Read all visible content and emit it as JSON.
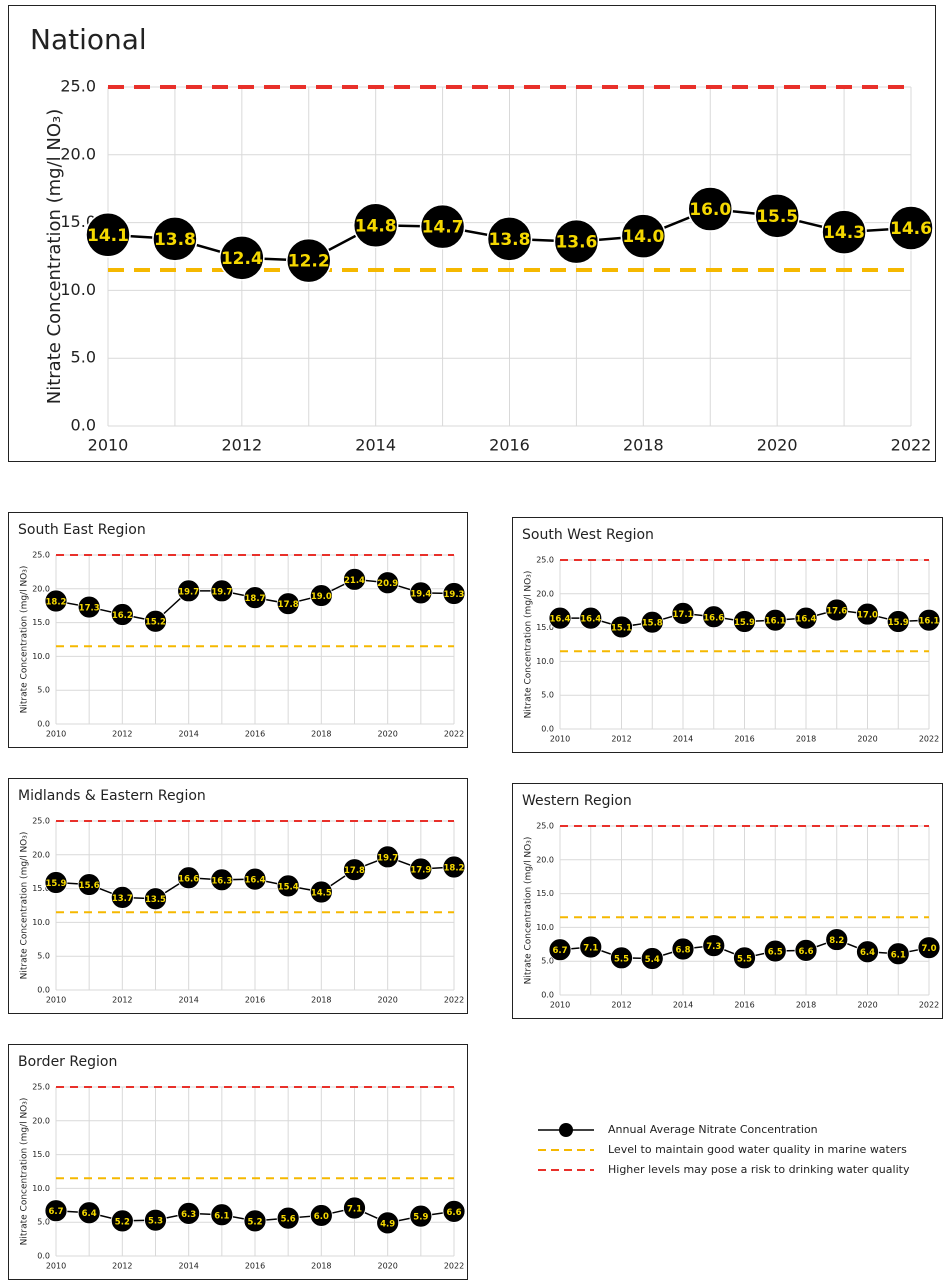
{
  "chart_data": [
    {
      "type": "line",
      "title": "National",
      "ylabel": "Nitrate Concentration (mg/l NO₃)",
      "x": [
        2010,
        2011,
        2012,
        2013,
        2014,
        2015,
        2016,
        2017,
        2018,
        2019,
        2020,
        2021,
        2022
      ],
      "series": [
        {
          "name": "Annual Average Nitrate Concentration",
          "color": "#000000",
          "values": [
            14.1,
            13.8,
            12.4,
            12.2,
            14.8,
            14.7,
            13.8,
            13.6,
            14.0,
            16.0,
            15.5,
            14.3,
            14.6
          ],
          "value_labels": [
            "14.1",
            "13.8",
            "12.4",
            "12.2",
            "14.8",
            "14.7",
            "13.8",
            "13.6",
            "14.0",
            "16.0",
            "15.5",
            "14.3",
            "14.6"
          ]
        }
      ],
      "reference_lines": [
        {
          "name": "Level to maintain good water quality in marine waters",
          "value": 11.5,
          "color": "#f5b800"
        },
        {
          "name": "Higher levels may pose a risk to drinking water quality",
          "value": 25,
          "color": "#e8302a"
        }
      ],
      "xlim": [
        2010,
        2022
      ],
      "xticks": [
        2010,
        2012,
        2014,
        2016,
        2018,
        2020,
        2022
      ],
      "ylim": [
        0,
        25
      ],
      "yticks": [
        {
          "value": 0,
          "label": "0.0"
        },
        {
          "value": 5,
          "label": "5.0"
        },
        {
          "value": 10,
          "label": "10.0"
        },
        {
          "value": 15,
          "label": "15.0"
        },
        {
          "value": 20,
          "label": "20.0"
        },
        {
          "value": 25,
          "label": "25.0"
        }
      ],
      "grid": true,
      "label_color": "#f5d800"
    },
    {
      "type": "line",
      "title": "South East Region",
      "ylabel": "Nitrate Concentration (mg/l NO₃)",
      "x": [
        2010,
        2011,
        2012,
        2013,
        2014,
        2015,
        2016,
        2017,
        2018,
        2019,
        2020,
        2021,
        2022
      ],
      "values": [
        18.2,
        17.3,
        16.2,
        15.2,
        19.7,
        19.7,
        18.7,
        17.8,
        19.0,
        21.4,
        20.9,
        19.4,
        19.3
      ],
      "color": "#000000",
      "value_labels": [
        "18.2",
        "17.3",
        "16.2",
        "15.2",
        "19.7",
        "19.7",
        "18.7",
        "17.8",
        "19.0",
        "21.4",
        "20.9",
        "19.4",
        "19.3"
      ],
      "reference_lines": [
        {
          "value": 11.5,
          "color": "#f5b800"
        },
        {
          "value": 25,
          "color": "#e8302a"
        }
      ],
      "xlim": [
        2010,
        2022
      ],
      "xticks": [
        2010,
        2012,
        2014,
        2016,
        2018,
        2020,
        2022
      ],
      "ylim": [
        0,
        25
      ],
      "yticks": [
        {
          "value": 0,
          "label": "0.0"
        },
        {
          "value": 5,
          "label": "5.0"
        },
        {
          "value": 10,
          "label": "10.0"
        },
        {
          "value": 15,
          "label": "15.0"
        },
        {
          "value": 20,
          "label": "20.0"
        },
        {
          "value": 25,
          "label": "25.0"
        }
      ],
      "grid": true,
      "label_color": "#f5d800"
    },
    {
      "type": "line",
      "title": "South West Region",
      "ylabel": "Nitrate Concentration (mg/l NO₃)",
      "x": [
        2010,
        2011,
        2012,
        2013,
        2014,
        2015,
        2016,
        2017,
        2018,
        2019,
        2020,
        2021,
        2022
      ],
      "values": [
        16.4,
        16.4,
        15.1,
        15.8,
        17.1,
        16.6,
        15.9,
        16.1,
        16.4,
        17.6,
        17.0,
        15.9,
        16.1
      ],
      "color": "#000000",
      "value_labels": [
        "16.4",
        "16.4",
        "15.1",
        "15.8",
        "17.1",
        "16.6",
        "15.9",
        "16.1",
        "16.4",
        "17.6",
        "17.0",
        "15.9",
        "16.1"
      ],
      "reference_lines": [
        {
          "value": 11.5,
          "color": "#f5b800"
        },
        {
          "value": 25,
          "color": "#e8302a"
        }
      ],
      "xlim": [
        2010,
        2022
      ],
      "xticks": [
        2010,
        2012,
        2014,
        2016,
        2018,
        2020,
        2022
      ],
      "ylim": [
        0,
        25
      ],
      "yticks": [
        {
          "value": 0,
          "label": "0.0"
        },
        {
          "value": 5,
          "label": "5.0"
        },
        {
          "value": 10,
          "label": "10.0"
        },
        {
          "value": 15,
          "label": "15.0"
        },
        {
          "value": 20,
          "label": "20.0"
        },
        {
          "value": 25,
          "label": "25.0"
        }
      ],
      "grid": true,
      "label_color": "#f5d800"
    },
    {
      "type": "line",
      "title": "Midlands & Eastern Region",
      "ylabel": "Nitrate Concentration (mg/l NO₃)",
      "x": [
        2010,
        2011,
        2012,
        2013,
        2014,
        2015,
        2016,
        2017,
        2018,
        2019,
        2020,
        2021,
        2022
      ],
      "values": [
        15.9,
        15.6,
        13.7,
        13.5,
        16.6,
        16.3,
        16.4,
        15.4,
        14.5,
        17.8,
        19.7,
        17.9,
        18.2
      ],
      "color": "#000000",
      "value_labels": [
        "15.9",
        "15.6",
        "13.7",
        "13.5",
        "16.6",
        "16.3",
        "16.4",
        "15.4",
        "14.5",
        "17.8",
        "19.7",
        "17.9",
        "18.2"
      ],
      "reference_lines": [
        {
          "value": 11.5,
          "color": "#f5b800"
        },
        {
          "value": 25,
          "color": "#e8302a"
        }
      ],
      "xlim": [
        2010,
        2022
      ],
      "xticks": [
        2010,
        2012,
        2014,
        2016,
        2018,
        2020,
        2022
      ],
      "ylim": [
        0,
        25
      ],
      "yticks": [
        {
          "value": 0,
          "label": "0.0"
        },
        {
          "value": 5,
          "label": "5.0"
        },
        {
          "value": 10,
          "label": "10.0"
        },
        {
          "value": 15,
          "label": "15.0"
        },
        {
          "value": 20,
          "label": "20.0"
        },
        {
          "value": 25,
          "label": "25.0"
        }
      ],
      "grid": true,
      "label_color": "#f5d800"
    },
    {
      "type": "line",
      "title": "Western Region",
      "ylabel": "Nitrate Concentration (mg/l NO₃)",
      "x": [
        2010,
        2011,
        2012,
        2013,
        2014,
        2015,
        2016,
        2017,
        2018,
        2019,
        2020,
        2021,
        2022
      ],
      "values": [
        6.7,
        7.1,
        5.5,
        5.4,
        6.8,
        7.3,
        5.5,
        6.5,
        6.6,
        8.2,
        6.4,
        6.1,
        7.0
      ],
      "color": "#000000",
      "value_labels": [
        "6.7",
        "7.1",
        "5.5",
        "5.4",
        "6.8",
        "7.3",
        "5.5",
        "6.5",
        "6.6",
        "8.2",
        "6.4",
        "6.1",
        "7.0"
      ],
      "reference_lines": [
        {
          "value": 11.5,
          "color": "#f5b800"
        },
        {
          "value": 25,
          "color": "#e8302a"
        }
      ],
      "xlim": [
        2010,
        2022
      ],
      "xticks": [
        2010,
        2012,
        2014,
        2016,
        2018,
        2020,
        2022
      ],
      "ylim": [
        0,
        25
      ],
      "yticks": [
        {
          "value": 0,
          "label": "0.0"
        },
        {
          "value": 5,
          "label": "5.0"
        },
        {
          "value": 10,
          "label": "10.0"
        },
        {
          "value": 15,
          "label": "15.0"
        },
        {
          "value": 20,
          "label": "20.0"
        },
        {
          "value": 25,
          "label": "25.0"
        }
      ],
      "grid": true,
      "label_color": "#f5d800"
    },
    {
      "type": "line",
      "title": "Border Region",
      "ylabel": "Nitrate Concentration (mg/l NO₃)",
      "x": [
        2010,
        2011,
        2012,
        2013,
        2014,
        2015,
        2016,
        2017,
        2018,
        2019,
        2020,
        2021,
        2022
      ],
      "values": [
        6.7,
        6.4,
        5.2,
        5.3,
        6.3,
        6.1,
        5.2,
        5.6,
        6.0,
        7.1,
        4.9,
        5.9,
        6.6
      ],
      "color": "#000000",
      "value_labels": [
        "6.7",
        "6.4",
        "5.2",
        "5.3",
        "6.3",
        "6.1",
        "5.2",
        "5.6",
        "6.0",
        "7.1",
        "4.9",
        "5.9",
        "6.6"
      ],
      "reference_lines": [
        {
          "value": 11.5,
          "color": "#f5b800"
        },
        {
          "value": 25,
          "color": "#e8302a"
        }
      ],
      "xlim": [
        2010,
        2022
      ],
      "xticks": [
        2010,
        2012,
        2014,
        2016,
        2018,
        2020,
        2022
      ],
      "ylim": [
        0,
        25
      ],
      "yticks": [
        {
          "value": 0,
          "label": "0.0"
        },
        {
          "value": 5,
          "label": "5.0"
        },
        {
          "value": 10,
          "label": "10.0"
        },
        {
          "value": 15,
          "label": "15.0"
        },
        {
          "value": 20,
          "label": "20.0"
        },
        {
          "value": 25,
          "label": "25.0"
        }
      ],
      "grid": true,
      "label_color": "#f5d800"
    }
  ]
}
